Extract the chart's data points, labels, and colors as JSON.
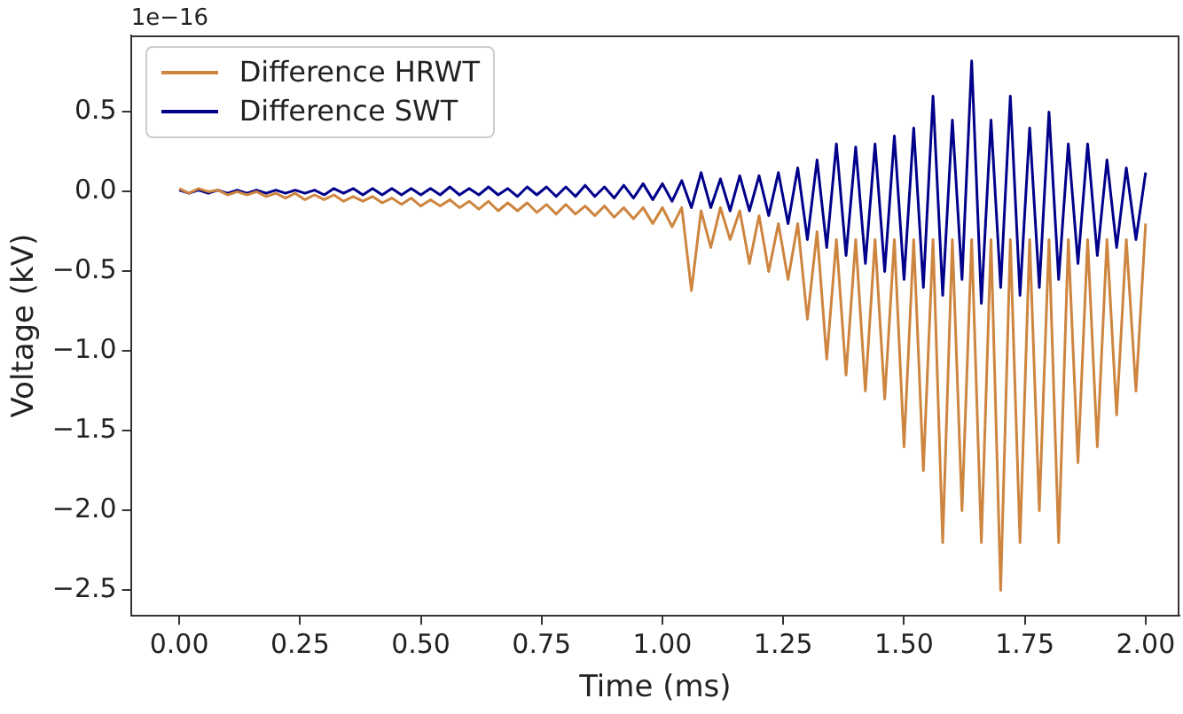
{
  "chart_data": {
    "type": "line",
    "xlabel": "Time (ms)",
    "ylabel": "Voltage (kV)",
    "annotations": [
      "1e−16"
    ],
    "x": [
      0,
      0.02,
      0.04,
      0.06,
      0.08,
      0.1,
      0.12,
      0.14,
      0.16,
      0.18,
      0.2,
      0.22,
      0.24,
      0.26,
      0.28,
      0.3,
      0.32,
      0.34,
      0.36,
      0.38,
      0.4,
      0.42,
      0.44,
      0.46,
      0.48,
      0.5,
      0.52,
      0.54,
      0.56,
      0.58,
      0.6,
      0.62,
      0.64,
      0.66,
      0.68,
      0.7,
      0.72,
      0.74,
      0.76,
      0.78,
      0.8,
      0.82,
      0.84,
      0.86,
      0.88,
      0.9,
      0.92,
      0.94,
      0.96,
      0.98,
      1.0,
      1.02,
      1.04,
      1.06,
      1.08,
      1.1,
      1.12,
      1.14,
      1.16,
      1.18,
      1.2,
      1.22,
      1.24,
      1.26,
      1.28,
      1.3,
      1.32,
      1.34,
      1.36,
      1.38,
      1.4,
      1.42,
      1.44,
      1.46,
      1.48,
      1.5,
      1.52,
      1.54,
      1.56,
      1.58,
      1.6,
      1.62,
      1.64,
      1.66,
      1.68,
      1.7,
      1.72,
      1.74,
      1.76,
      1.78,
      1.8,
      1.82,
      1.84,
      1.86,
      1.88,
      1.9,
      1.92,
      1.94,
      1.96,
      1.98,
      2.0
    ],
    "series": [
      {
        "name": "Difference HRWT",
        "color": "#cd853f",
        "values": [
          0.02,
          -0.01,
          0.02,
          0,
          0.01,
          -0.02,
          0,
          -0.02,
          0,
          -0.03,
          -0.01,
          -0.04,
          -0.01,
          -0.05,
          -0.02,
          -0.05,
          -0.02,
          -0.06,
          -0.03,
          -0.06,
          -0.03,
          -0.07,
          -0.04,
          -0.08,
          -0.04,
          -0.09,
          -0.05,
          -0.09,
          -0.05,
          -0.1,
          -0.06,
          -0.11,
          -0.06,
          -0.12,
          -0.07,
          -0.12,
          -0.07,
          -0.13,
          -0.08,
          -0.14,
          -0.08,
          -0.14,
          -0.09,
          -0.15,
          -0.09,
          -0.16,
          -0.1,
          -0.17,
          -0.1,
          -0.2,
          -0.1,
          -0.22,
          -0.1,
          -0.62,
          -0.12,
          -0.35,
          -0.1,
          -0.3,
          -0.12,
          -0.45,
          -0.15,
          -0.5,
          -0.2,
          -0.55,
          -0.2,
          -0.8,
          -0.25,
          -1.05,
          -0.3,
          -1.15,
          -0.3,
          -1.25,
          -0.3,
          -1.3,
          -0.3,
          -1.6,
          -0.3,
          -1.75,
          -0.3,
          -2.2,
          -0.3,
          -2.0,
          -0.3,
          -2.2,
          -0.3,
          -2.5,
          -0.3,
          -2.2,
          -0.3,
          -2.0,
          -0.3,
          -2.2,
          -0.3,
          -1.7,
          -0.3,
          -1.6,
          -0.3,
          -1.4,
          -0.3,
          -1.25,
          -0.2
        ]
      },
      {
        "name": "Difference SWT",
        "color": "#00008b",
        "values": [
          0.01,
          -0.01,
          0.01,
          -0.01,
          0.01,
          -0.01,
          0.01,
          -0.01,
          0.01,
          -0.01,
          0.01,
          -0.01,
          0.01,
          -0.01,
          0.01,
          -0.02,
          0.02,
          -0.01,
          0.02,
          -0.02,
          0.02,
          -0.02,
          0.02,
          -0.02,
          0.02,
          -0.02,
          0.02,
          -0.02,
          0.03,
          -0.02,
          0.02,
          -0.02,
          0.03,
          -0.02,
          0.02,
          -0.03,
          0.03,
          -0.02,
          0.03,
          -0.03,
          0.03,
          -0.03,
          0.04,
          -0.03,
          0.03,
          -0.04,
          0.04,
          -0.04,
          0.05,
          -0.05,
          0.05,
          -0.06,
          0.07,
          -0.1,
          0.12,
          -0.1,
          0.08,
          -0.12,
          0.1,
          -0.12,
          0.1,
          -0.15,
          0.12,
          -0.2,
          0.15,
          -0.3,
          0.2,
          -0.35,
          0.3,
          -0.4,
          0.28,
          -0.45,
          0.3,
          -0.5,
          0.35,
          -0.55,
          0.4,
          -0.6,
          0.6,
          -0.65,
          0.45,
          -0.55,
          0.82,
          -0.7,
          0.45,
          -0.6,
          0.6,
          -0.65,
          0.4,
          -0.6,
          0.5,
          -0.55,
          0.3,
          -0.45,
          0.3,
          -0.4,
          0.2,
          -0.35,
          0.15,
          -0.3,
          0.12
        ]
      }
    ],
    "xlim": [
      -0.1,
      2.07
    ],
    "xticks": [
      {
        "value": 0,
        "label": "0.00"
      },
      {
        "value": 0.25,
        "label": "0.25"
      },
      {
        "value": 0.5,
        "label": "0.50"
      },
      {
        "value": 0.75,
        "label": "0.75"
      },
      {
        "value": 1,
        "label": "1.00"
      },
      {
        "value": 1.25,
        "label": "1.25"
      },
      {
        "value": 1.5,
        "label": "1.50"
      },
      {
        "value": 1.75,
        "label": "1.75"
      },
      {
        "value": 2,
        "label": "2.00"
      }
    ],
    "ylim": [
      -2.66,
      0.98
    ],
    "yticks": [
      {
        "value": -2.5,
        "label": "−2.5"
      },
      {
        "value": -2,
        "label": "−2.0"
      },
      {
        "value": -1.5,
        "label": "−1.5"
      },
      {
        "value": -1,
        "label": "−1.0"
      },
      {
        "value": -0.5,
        "label": "−0.5"
      },
      {
        "value": 0,
        "label": "0.0"
      },
      {
        "value": 0.5,
        "label": "0.5"
      }
    ],
    "grid": false,
    "legend": "top left",
    "marker": "none",
    "line_style": "solid"
  }
}
